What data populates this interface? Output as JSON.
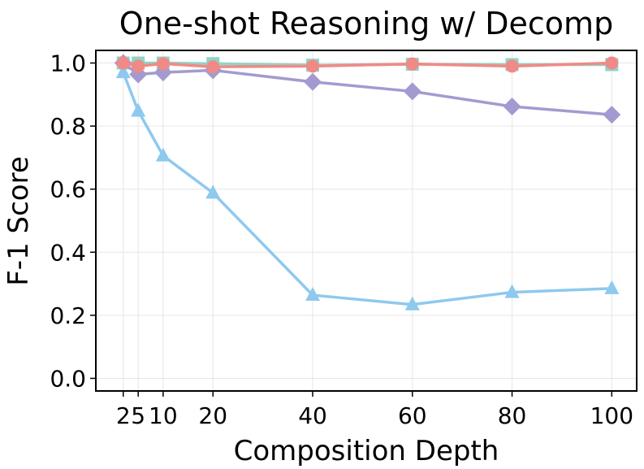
{
  "chart_data": {
    "type": "line",
    "title": "One-shot Reasoning w/ Decomp",
    "xlabel": "Composition Depth",
    "ylabel": "F-1 Score",
    "xlim": [
      -3.5,
      105
    ],
    "ylim": [
      -0.04,
      1.04
    ],
    "x": [
      2,
      5,
      10,
      20,
      40,
      60,
      80,
      100
    ],
    "xticks": [
      2,
      5,
      10,
      20,
      40,
      60,
      80,
      100
    ],
    "xtick_labels": [
      "2",
      "5",
      "10",
      "20",
      "40",
      "60",
      "80",
      "100"
    ],
    "yticks": [
      0.0,
      0.2,
      0.4,
      0.6,
      0.8,
      1.0
    ],
    "ytick_labels": [
      "0.0",
      "0.2",
      "0.4",
      "0.6",
      "0.8",
      "1.0"
    ],
    "grid": true,
    "series": [
      {
        "name": "square",
        "marker": "square",
        "color": "#8fd4c8",
        "values": [
          1.0,
          1.0,
          1.0,
          0.998,
          0.993,
          0.996,
          0.995,
          0.995
        ]
      },
      {
        "name": "diamond",
        "marker": "diamond",
        "color": "#a49ad0",
        "values": [
          1.0,
          0.964,
          0.97,
          0.977,
          0.94,
          0.91,
          0.862,
          0.836
        ]
      },
      {
        "name": "triangle",
        "marker": "triangle",
        "color": "#8ec9ee",
        "values": [
          0.97,
          0.848,
          0.706,
          0.588,
          0.264,
          0.234,
          0.273,
          0.285
        ]
      },
      {
        "name": "circle",
        "marker": "circle",
        "color": "#f08a87",
        "values": [
          1.0,
          0.99,
          0.998,
          0.988,
          0.99,
          0.997,
          0.99,
          1.0
        ]
      }
    ]
  }
}
